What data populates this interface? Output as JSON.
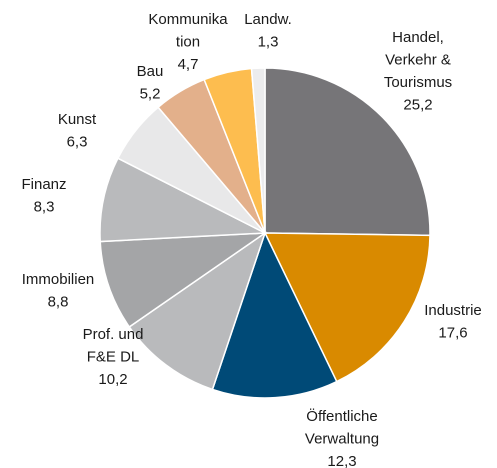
{
  "chart_data": {
    "type": "pie",
    "categories": [
      [
        "Handel,",
        "Verkehr &",
        "Tourismus"
      ],
      [
        "Industrie"
      ],
      [
        "Öffentliche",
        "Verwaltung"
      ],
      [
        "Prof. und",
        "F&E DL"
      ],
      [
        "Immobilien"
      ],
      [
        "Finanz"
      ],
      [
        "Kunst"
      ],
      [
        "Bau"
      ],
      [
        "Kommunika",
        "tion"
      ],
      [
        "Landw."
      ]
    ],
    "values": [
      25.2,
      17.6,
      12.3,
      10.2,
      8.8,
      8.3,
      6.3,
      5.2,
      4.7,
      1.3
    ],
    "value_labels": [
      "25,2",
      "17,6",
      "12,3",
      "10,2",
      "8,8",
      "8,3",
      "6,3",
      "5,2",
      "4,7",
      "1,3"
    ],
    "colors": [
      "#767578",
      "#d98a00",
      "#004a77",
      "#b9babc",
      "#a4a5a7",
      "#b9babc",
      "#e8e8e9",
      "#e3b08b",
      "#fdbd4f",
      "#ececed"
    ]
  }
}
